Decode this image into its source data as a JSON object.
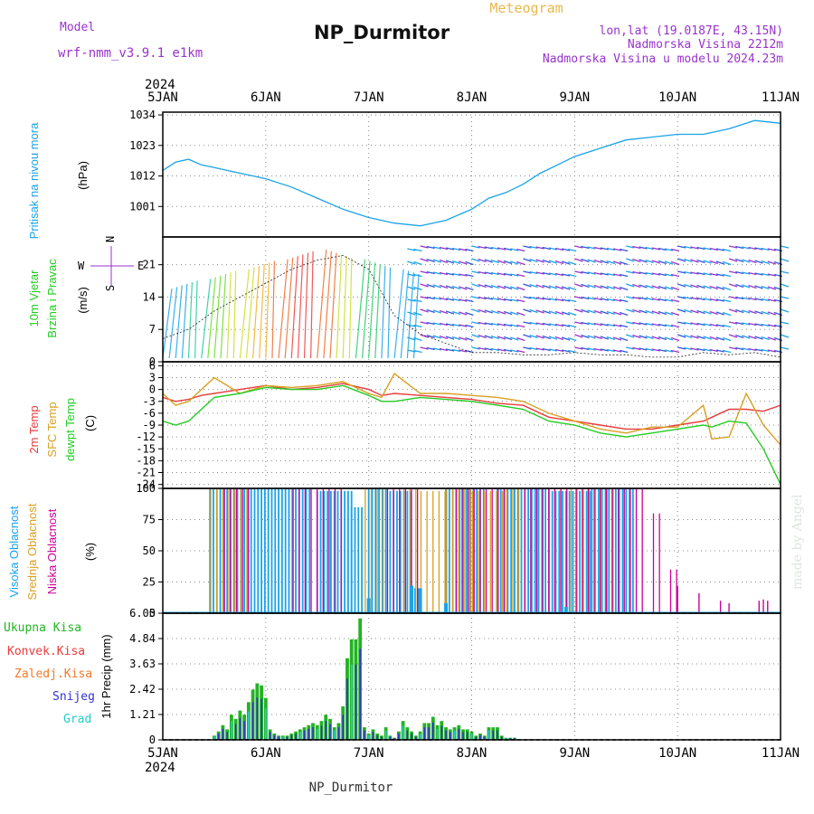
{
  "header": {
    "model_label": "Model",
    "model_name": "wrf-nmm_v3.9.1 e1km",
    "title": "NP_Durmitor",
    "meteogram_label": "Meteogram",
    "lonlat": "lon,lat (19.0187E, 43.15N)",
    "elevation": "Nadmorska Visina 2212m",
    "model_elevation": "Nadmorska Visina u modelu 2024.23m",
    "footer": "NP_Durmitor",
    "watermark": "made by Angel"
  },
  "colors": {
    "pressure": "#1aa3e8",
    "temp2m": "#e83c3c",
    "sfc": "#d8a020",
    "dewpt": "#22cc22",
    "high_cloud": "#1aa3e8",
    "mid_cloud": "#d8a020",
    "low_cloud": "#cc0099",
    "total_precip": "#22b322",
    "snow": "#3333cc",
    "grad": "#22cccc",
    "header_purple": "#9933cc",
    "header_gold": "#e8b84c",
    "wind_purple": "#9933cc",
    "watermark": "#dde5dd"
  },
  "chart_data": [
    {
      "type": "line",
      "id": "pressure",
      "ylabel": "Pritisak na nivou mora",
      "unit": "(hPa)",
      "yticks": [
        1001,
        1012,
        1023,
        1034
      ],
      "ylim": [
        990,
        1035
      ],
      "grid": true,
      "x_hours": [
        0,
        3,
        6,
        9,
        12,
        15,
        18,
        21,
        24,
        30,
        36,
        42,
        48,
        54,
        60,
        66,
        72,
        76,
        80,
        84,
        88,
        92,
        96,
        102,
        108,
        114,
        120,
        126,
        132,
        138,
        144
      ],
      "values": [
        1014,
        1017,
        1018,
        1016,
        1015,
        1014,
        1013,
        1012,
        1011,
        1008,
        1004,
        1000,
        997,
        995,
        994,
        996,
        1000,
        1004,
        1006,
        1009,
        1013,
        1016,
        1019,
        1022,
        1025,
        1026,
        1027,
        1027,
        1029,
        1032,
        1031
      ],
      "series_colors": [
        "pressure"
      ]
    },
    {
      "type": "line",
      "id": "wind",
      "ylabel": [
        "10m Vjetar",
        "Brzina i Pravac"
      ],
      "unit": "(m/s)",
      "direction_legend": {
        "west": "W",
        "east": "E",
        "north": "N",
        "south": "S"
      },
      "yticks": [
        0,
        7,
        14,
        21
      ],
      "ylim": [
        0,
        27
      ],
      "grid": true,
      "x_hours": [
        0,
        6,
        12,
        18,
        24,
        30,
        36,
        42,
        48,
        54,
        60,
        66,
        72,
        78,
        84,
        90,
        96,
        102,
        108,
        114,
        120,
        126,
        132,
        138,
        144
      ],
      "values": [
        5,
        7,
        11,
        14,
        17,
        20,
        22,
        23,
        20,
        10,
        6,
        4,
        2,
        2,
        1.5,
        1.5,
        2,
        1.5,
        1.5,
        1,
        1,
        2,
        1.5,
        2,
        1
      ],
      "style": "wind-barbs"
    },
    {
      "type": "line",
      "id": "temperature",
      "ylabel": [
        "2m Temp",
        "SFC Temp",
        "dewpt Temp"
      ],
      "unit": "(C)",
      "yticks": [
        6,
        3,
        0,
        -3,
        -6,
        -9,
        -12,
        -15,
        -18,
        -21,
        -24
      ],
      "ylim": [
        -25,
        7
      ],
      "grid": true,
      "x_hours": [
        0,
        3,
        6,
        9,
        12,
        18,
        24,
        30,
        36,
        42,
        48,
        51,
        54,
        60,
        66,
        72,
        78,
        84,
        90,
        96,
        102,
        108,
        114,
        120,
        126,
        128,
        132,
        136,
        140,
        144
      ],
      "series": [
        {
          "name": "2m Temp",
          "color": "temp2m",
          "values": [
            -2,
            -3,
            -2.5,
            -1.5,
            -1,
            0,
            1,
            0,
            0.5,
            1.5,
            0,
            -1.5,
            -1,
            -1.5,
            -2,
            -2.5,
            -3.5,
            -4,
            -7,
            -8,
            -9,
            -10,
            -10,
            -9,
            -8,
            -7,
            -5,
            -5,
            -5.5,
            -4
          ]
        },
        {
          "name": "SFC Temp",
          "color": "sfc",
          "values": [
            -1,
            -4,
            -3,
            0,
            3,
            -1,
            1,
            0.5,
            1,
            2,
            -1,
            -2,
            4,
            -1,
            -1,
            -1.5,
            -2,
            -3,
            -6,
            -8,
            -10,
            -11,
            -9.5,
            -9.5,
            -4,
            -12.5,
            -12,
            -1,
            -9,
            -14
          ]
        },
        {
          "name": "dewpt Temp",
          "color": "dewpt",
          "values": [
            -8,
            -9,
            -8,
            -5,
            -2,
            -1,
            0.5,
            0,
            0,
            1,
            -1.5,
            -3,
            -3,
            -2,
            -2.5,
            -3,
            -4,
            -5,
            -8,
            -9,
            -11,
            -12,
            -11,
            -10,
            -9,
            -9.5,
            -8,
            -8.5,
            -15,
            -24
          ]
        }
      ]
    },
    {
      "type": "bar",
      "id": "cloud",
      "ylabel": [
        "Visoka Oblacnost",
        "Srednja Oblacnost",
        "Niska Oblacnost"
      ],
      "unit": "(%)",
      "yticks": [
        0,
        25,
        50,
        75,
        100
      ],
      "ylim": [
        0,
        100
      ],
      "grid": true,
      "series": [
        {
          "name": "Visoka Oblacnost",
          "color": "high_cloud",
          "segments": [
            [
              11,
              35,
              100
            ],
            [
              36,
              44,
              98
            ],
            [
              44,
              47,
              85
            ],
            [
              48,
              52,
              100
            ],
            [
              53,
              58,
              98
            ],
            [
              58,
              60,
              20
            ],
            [
              66,
              75,
              100
            ],
            [
              78,
              90,
              100
            ],
            [
              90,
              100,
              98
            ],
            [
              100,
              110,
              100
            ]
          ]
        },
        {
          "name": "Srednja Oblacnost",
          "color": "mid_cloud",
          "segments": [
            [
              11,
              20,
              100
            ],
            [
              47,
              52,
              100
            ],
            [
              56,
              60,
              100
            ],
            [
              60,
              66,
              98
            ],
            [
              66,
              72,
              100
            ],
            [
              72,
              80,
              98
            ],
            [
              80,
              95,
              100
            ],
            [
              95,
              106,
              100
            ]
          ]
        },
        {
          "name": "Niska Oblacnost",
          "color": "low_cloud",
          "segments": [
            [
              14,
              20,
              100
            ],
            [
              30,
              42,
              100
            ],
            [
              52,
              60,
              100
            ],
            [
              68,
              80,
              100
            ],
            [
              84,
              95,
              100
            ],
            [
              96,
              112,
              100
            ],
            [
              114,
              116,
              80
            ],
            [
              118,
              120,
              35
            ]
          ]
        }
      ],
      "low_cloud_sparse": [
        [
          120,
          22
        ],
        [
          125,
          16
        ],
        [
          130,
          10
        ],
        [
          132,
          8
        ],
        [
          139,
          10
        ],
        [
          140,
          11
        ],
        [
          141,
          10
        ]
      ],
      "high_cloud_sparse": [
        [
          48,
          12
        ],
        [
          58,
          22
        ],
        [
          60,
          20
        ],
        [
          66,
          8
        ],
        [
          94,
          5
        ]
      ]
    },
    {
      "type": "bar",
      "id": "precip",
      "ylabel": "1hr Precip",
      "unit": "(mm)",
      "legend": [
        "Ukupna Kisa",
        "Konvek.Kisa",
        "Zaledj.Kisa",
        "Snijeg",
        "Grad"
      ],
      "yticks": [
        0,
        1.21,
        2.42,
        3.63,
        4.84,
        6.05
      ],
      "ylim": [
        0,
        6.05
      ],
      "grid": true,
      "x_hours": [
        12,
        13,
        14,
        15,
        16,
        17,
        18,
        19,
        20,
        21,
        22,
        23,
        24,
        25,
        26,
        27,
        28,
        29,
        30,
        31,
        32,
        33,
        34,
        35,
        36,
        37,
        38,
        39,
        40,
        41,
        42,
        43,
        44,
        45,
        46,
        47,
        48,
        49,
        50,
        51,
        52,
        53,
        54,
        55,
        56,
        57,
        58,
        59,
        60,
        61,
        62,
        63,
        64,
        65,
        66,
        67,
        68,
        69,
        70,
        71,
        72,
        73,
        74,
        75,
        76,
        77,
        78,
        79,
        80,
        81,
        82
      ],
      "values": [
        0.2,
        0.4,
        0.7,
        0.5,
        1.2,
        1.0,
        1.4,
        1.2,
        1.8,
        2.4,
        2.7,
        2.6,
        2.0,
        0.5,
        0.3,
        0.2,
        0.2,
        0.2,
        0.3,
        0.4,
        0.5,
        0.6,
        0.7,
        0.8,
        0.7,
        0.9,
        1.2,
        1.0,
        0.6,
        0.8,
        1.6,
        3.9,
        4.8,
        4.8,
        5.8,
        0.6,
        0.3,
        0.5,
        0.3,
        0.2,
        0.6,
        0.2,
        0.1,
        0.4,
        0.9,
        0.6,
        0.4,
        0.2,
        0.4,
        0.8,
        0.8,
        1.1,
        0.7,
        0.9,
        0.6,
        0.5,
        0.6,
        0.7,
        0.5,
        0.5,
        0.4,
        0.2,
        0.3,
        0.2,
        0.6,
        0.6,
        0.6,
        0.2,
        0.1,
        0.1,
        0.1
      ]
    }
  ],
  "x_axis": {
    "year": "2024",
    "labels": [
      "5JAN",
      "6JAN",
      "7JAN",
      "8JAN",
      "9JAN",
      "10JAN",
      "11JAN"
    ],
    "range_hours": [
      0,
      144
    ]
  }
}
